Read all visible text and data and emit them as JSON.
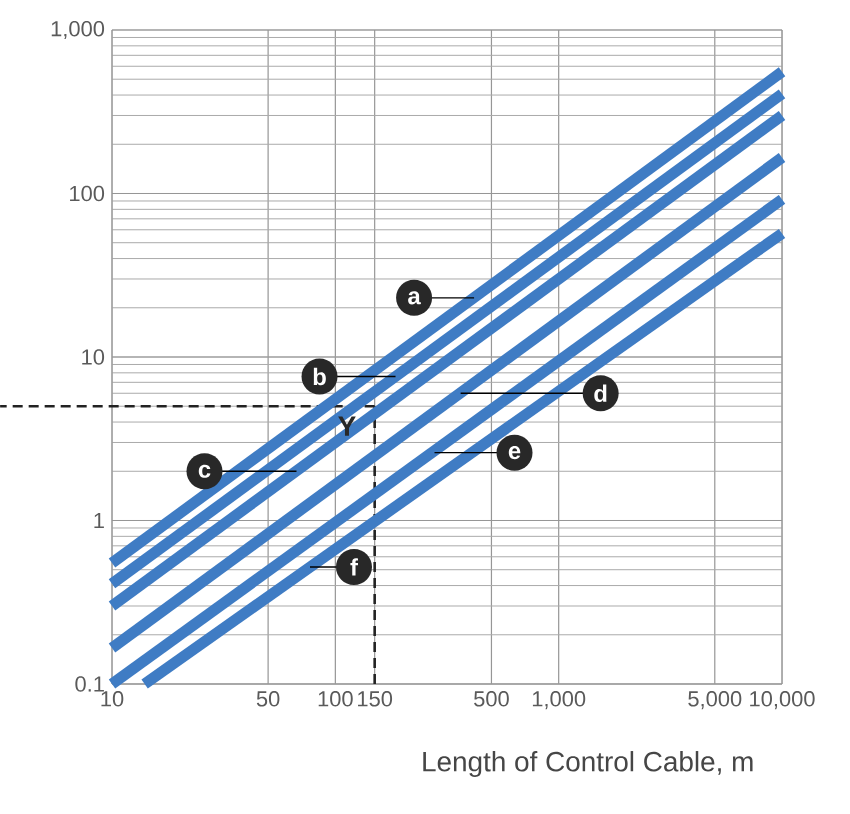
{
  "chart_data": {
    "type": "line",
    "xlabel": "Length of Control Cable, m",
    "log": "xy",
    "grid": true,
    "marker": "none",
    "line_style": "solid",
    "xlim": [
      10,
      10000
    ],
    "ylim": [
      0.1,
      1000
    ],
    "xticks": [
      10,
      50,
      100,
      150,
      500,
      {
        "value": 1000,
        "label": "1,000"
      },
      {
        "value": 5000,
        "label": "5,000"
      },
      {
        "value": 10000,
        "label": "10,000"
      }
    ],
    "yticks": [
      0.1,
      1,
      10,
      100,
      {
        "value": 1000,
        "label": "1,000"
      }
    ],
    "series": [
      {
        "color": "#3f7cc4",
        "x": [
          10,
          10000
        ],
        "values": [
          0.55,
          555
        ]
      },
      {
        "color": "#3f7cc4",
        "x": [
          10,
          10000
        ],
        "values": [
          0.41,
          407
        ]
      },
      {
        "color": "#3f7cc4",
        "x": [
          10,
          10000
        ],
        "values": [
          0.3,
          300
        ]
      },
      {
        "color": "#3f7cc4",
        "x": [
          10,
          10000
        ],
        "values": [
          0.166,
          166
        ]
      },
      {
        "color": "#3f7cc4",
        "x": [
          10,
          10000
        ],
        "values": [
          0.1,
          92
        ]
      },
      {
        "color": "#3f7cc4",
        "x": [
          14,
          10000
        ],
        "values": [
          0.1,
          57
        ]
      }
    ],
    "ref_lines": [
      {
        "axis": "x",
        "value": 150,
        "color": "#222222",
        "line_style": "dashed"
      },
      {
        "axis": "y",
        "value": 5,
        "color": "#222222",
        "line_style": "dashed"
      }
    ],
    "annotations": [
      {
        "text": "Y",
        "x": 150,
        "y": 5
      },
      {
        "text": "a",
        "x": 418,
        "y": 23
      },
      {
        "text": "b",
        "x": 186,
        "y": 7.6
      },
      {
        "text": "c",
        "x": 67,
        "y": 2
      },
      {
        "text": "d",
        "x": 364,
        "y": 6
      },
      {
        "text": "e",
        "x": 278,
        "y": 2.6
      },
      {
        "text": "f",
        "x": 77,
        "y": 0.52
      }
    ]
  }
}
